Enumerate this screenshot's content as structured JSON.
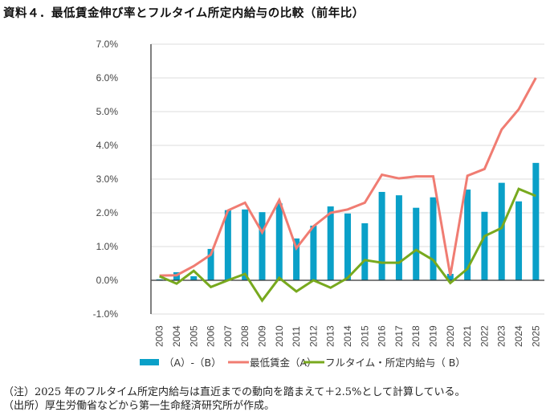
{
  "title": "資料４．最低賃金伸び率とフルタイム所定内給与の比較（前年比）",
  "notes": [
    "（注）2025 年のフルタイム所定内給与は直近までの動向を踏まえて＋2.5%として計算している。",
    "（出所）厚生労働省などから第一生命経済研究所が作成。"
  ],
  "chart_data": {
    "type": "bar+line",
    "title": "最低賃金伸び率とフルタイム所定内給与の比較（前年比）",
    "xlabel": "",
    "ylabel": "",
    "ylim": [
      -1.0,
      7.0
    ],
    "yticks": [
      -1.0,
      0.0,
      1.0,
      2.0,
      3.0,
      4.0,
      5.0,
      6.0,
      7.0
    ],
    "ytick_labels": [
      "-1.0%",
      "0.0%",
      "1.0%",
      "2.0%",
      "3.0%",
      "4.0%",
      "5.0%",
      "6.0%",
      "7.0%"
    ],
    "grid": true,
    "legend_position": "bottom",
    "categories": [
      "2003",
      "2004",
      "2005",
      "2006",
      "2007",
      "2008",
      "2009",
      "2010",
      "2011",
      "2012",
      "2013",
      "2014",
      "2015",
      "2016",
      "2017",
      "2018",
      "2019",
      "2020",
      "2021",
      "2022",
      "2023",
      "2024",
      "2025"
    ],
    "series": [
      {
        "name": "（A）-（B）",
        "type": "bar",
        "color": "#0aa0c8",
        "values": [
          0.03,
          0.24,
          0.12,
          0.93,
          2.08,
          2.1,
          2.02,
          2.28,
          1.24,
          1.62,
          2.19,
          1.98,
          1.69,
          2.62,
          2.52,
          2.15,
          2.46,
          0.19,
          2.69,
          2.03,
          2.89,
          2.34,
          3.48
        ]
      },
      {
        "name": "最低賃金（A）",
        "type": "line",
        "color": "#f07c72",
        "values": [
          0.14,
          0.15,
          0.42,
          0.76,
          2.07,
          2.3,
          1.42,
          2.38,
          0.95,
          1.6,
          2.0,
          2.1,
          2.3,
          3.13,
          3.02,
          3.08,
          3.08,
          0.14,
          3.1,
          3.3,
          4.47,
          5.07,
          6.0
        ]
      },
      {
        "name": "フルタイム・所定内給与（ B）",
        "type": "line",
        "color": "#78a91e",
        "values": [
          0.12,
          -0.1,
          0.28,
          -0.2,
          0.0,
          0.19,
          -0.6,
          0.07,
          -0.33,
          0.0,
          -0.22,
          0.07,
          0.6,
          0.52,
          0.52,
          0.9,
          0.6,
          -0.08,
          0.34,
          1.31,
          1.55,
          2.71,
          2.5
        ]
      }
    ]
  }
}
